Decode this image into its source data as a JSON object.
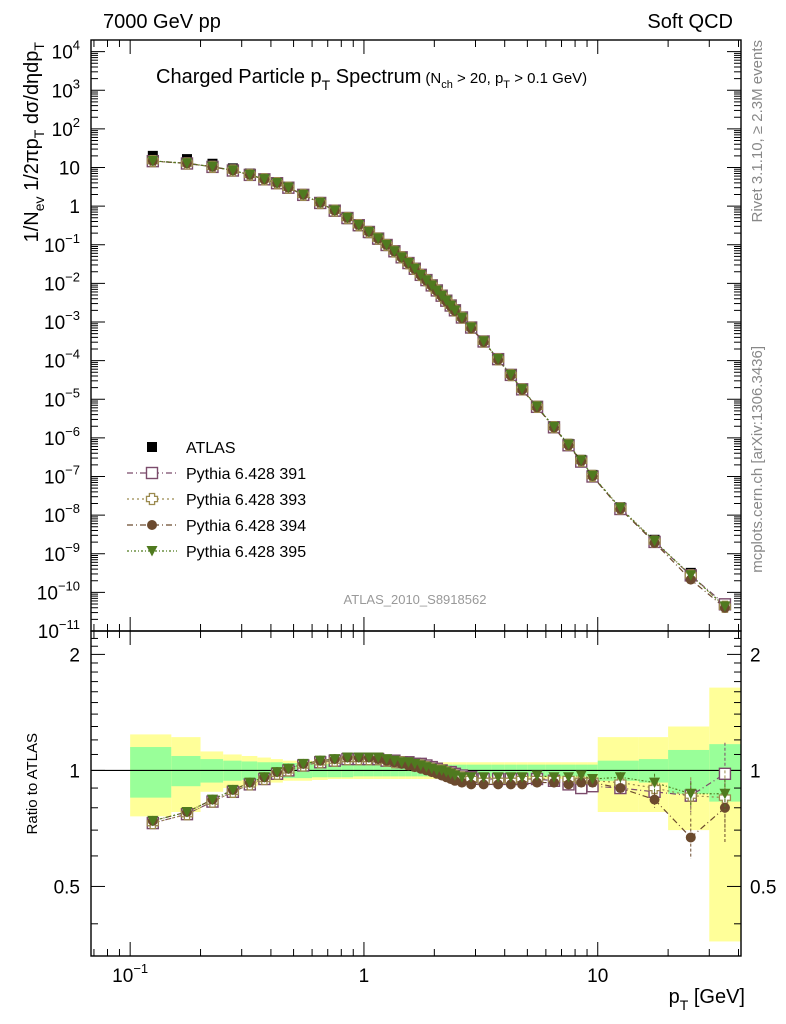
{
  "header": {
    "left": "7000 GeV pp",
    "right": "Soft QCD"
  },
  "side": {
    "rivet": "Rivet 3.1.10, ≥ 2.3M events",
    "mcplots": "mcplots.cern.ch [arXiv:1306.3436]"
  },
  "chart_data": {
    "type": "scatter",
    "title_main": "Charged Particle p",
    "title_main_sub": "T",
    "title_main_end": " Spectrum",
    "title_cut_a": "(N",
    "title_cut_a_sub": "ch",
    "title_cut_b": " > 20, p",
    "title_cut_b_sub": "T",
    "title_cut_c": " > 0.1 GeV)",
    "analysis": "ATLAS_2010_S8918562",
    "ylabel_parts": [
      "1/N",
      "ev",
      " 1/2πp",
      "T",
      " dσ/dηdp",
      "T"
    ],
    "ratio_ylabel": "Ratio to ATLAS",
    "xlabel": "p",
    "xlabel_sub": "T",
    "xlabel_end": "  [GeV]",
    "x_scale": "log",
    "y_scale": "log",
    "xlim": [
      0.068,
      41
    ],
    "ylim": [
      1e-11,
      20000.0
    ],
    "ratio_ylim": [
      0.33,
      2.3
    ],
    "ytick_labels": {
      "base": "10",
      "exps": [
        "4",
        "3",
        "2",
        "",
        "",
        "−1",
        "−2",
        "−3",
        "−4",
        "−5",
        "−6",
        "−7",
        "−8",
        "−9",
        "−10",
        "−11"
      ],
      "plain": [
        "",
        "",
        "",
        "10",
        "1",
        "",
        "",
        "",
        "",
        "",
        "",
        "",
        "",
        "",
        "",
        ""
      ]
    },
    "xtick_labels": [
      "10",
      "1",
      "10"
    ],
    "xtick_label_exp": "−1",
    "ratio_tick_labels": [
      "2",
      "1",
      "0.5"
    ],
    "legend_position": "bottom-left",
    "x": [
      0.125,
      0.175,
      0.225,
      0.275,
      0.325,
      0.375,
      0.425,
      0.475,
      0.55,
      0.65,
      0.75,
      0.85,
      0.95,
      1.05,
      1.15,
      1.25,
      1.35,
      1.45,
      1.55,
      1.65,
      1.75,
      1.85,
      1.95,
      2.05,
      2.15,
      2.25,
      2.35,
      2.45,
      2.625,
      2.875,
      3.25,
      3.75,
      4.25,
      4.75,
      5.5,
      6.5,
      7.5,
      8.5,
      9.5,
      12.5,
      17.5,
      25.0,
      35.0
    ],
    "atlas": [
      20,
      16.5,
      12.5,
      9.5,
      7.0,
      5.2,
      4.0,
      3.0,
      1.9,
      1.15,
      0.72,
      0.46,
      0.3,
      0.2,
      0.135,
      0.093,
      0.064,
      0.045,
      0.032,
      0.023,
      0.016,
      0.0118,
      0.0087,
      0.0065,
      0.0048,
      0.0036,
      0.0027,
      0.00205,
      0.00135,
      0.00075,
      0.00033,
      0.000115,
      4.5e-05,
      1.9e-05,
      6.7e-06,
      2e-06,
      7e-07,
      2.7e-07,
      1.1e-07,
      1.6e-08,
      2.3e-09,
      3.2e-10,
      5e-11
    ],
    "bands": {
      "x_edges": [
        0.1,
        0.15,
        0.2,
        0.25,
        0.3,
        0.35,
        0.4,
        0.45,
        0.5,
        0.6,
        0.7,
        0.8,
        0.9,
        1.0,
        1.1,
        1.2,
        1.3,
        1.4,
        1.5,
        1.6,
        1.7,
        1.8,
        1.9,
        2.0,
        2.1,
        2.2,
        2.3,
        2.4,
        2.5,
        2.75,
        3.0,
        3.5,
        4.0,
        4.5,
        5.0,
        6.0,
        7.0,
        8.0,
        9.0,
        10.0,
        15.0,
        20.0,
        30.0,
        41.0
      ],
      "stat_half": [
        0.15,
        0.09,
        0.07,
        0.06,
        0.055,
        0.05,
        0.05,
        0.045,
        0.045,
        0.04,
        0.04,
        0.04,
        0.035,
        0.035,
        0.035,
        0.035,
        0.035,
        0.035,
        0.035,
        0.035,
        0.035,
        0.035,
        0.035,
        0.035,
        0.035,
        0.035,
        0.035,
        0.035,
        0.035,
        0.035,
        0.035,
        0.035,
        0.035,
        0.035,
        0.035,
        0.035,
        0.035,
        0.035,
        0.035,
        0.06,
        0.07,
        0.13,
        0.17
      ],
      "total_half": [
        0.24,
        0.22,
        0.12,
        0.1,
        0.09,
        0.08,
        0.07,
        0.06,
        0.06,
        0.055,
        0.05,
        0.05,
        0.05,
        0.05,
        0.05,
        0.05,
        0.05,
        0.05,
        0.05,
        0.05,
        0.05,
        0.05,
        0.05,
        0.05,
        0.05,
        0.05,
        0.05,
        0.05,
        0.05,
        0.05,
        0.05,
        0.05,
        0.05,
        0.05,
        0.05,
        0.05,
        0.05,
        0.05,
        0.05,
        0.22,
        0.22,
        0.3,
        0.64
      ]
    },
    "series": [
      {
        "name": "Pythia 6.428 391",
        "marker": "open-square",
        "color": "#7b4b6b",
        "ratio": [
          0.73,
          0.77,
          0.83,
          0.88,
          0.92,
          0.95,
          0.98,
          1.0,
          1.03,
          1.05,
          1.06,
          1.07,
          1.07,
          1.07,
          1.07,
          1.06,
          1.06,
          1.05,
          1.05,
          1.04,
          1.04,
          1.03,
          1.02,
          1.01,
          1.0,
          0.99,
          0.99,
          0.98,
          0.97,
          0.96,
          0.95,
          0.95,
          0.95,
          0.95,
          0.95,
          0.94,
          0.92,
          0.9,
          0.91,
          0.9,
          0.88,
          0.86,
          0.98
        ],
        "err": [
          0,
          0,
          0,
          0,
          0,
          0,
          0,
          0,
          0,
          0,
          0,
          0,
          0,
          0,
          0,
          0,
          0,
          0,
          0,
          0,
          0,
          0,
          0,
          0,
          0,
          0,
          0,
          0,
          0,
          0,
          0,
          0,
          0,
          0,
          0,
          0,
          0,
          0,
          0.02,
          0.03,
          0.05,
          0.08,
          0.2
        ]
      },
      {
        "name": "Pythia 6.428 393",
        "marker": "open-cross",
        "color": "#9b8a4f",
        "ratio": [
          0.73,
          0.77,
          0.83,
          0.88,
          0.92,
          0.95,
          0.98,
          1.0,
          1.03,
          1.05,
          1.06,
          1.07,
          1.07,
          1.07,
          1.07,
          1.06,
          1.05,
          1.05,
          1.04,
          1.03,
          1.03,
          1.02,
          1.01,
          1.0,
          1.0,
          0.99,
          0.98,
          0.97,
          0.96,
          0.95,
          0.94,
          0.94,
          0.94,
          0.95,
          0.95,
          0.95,
          0.95,
          0.94,
          0.94,
          0.93,
          0.9,
          0.86,
          0.85
        ],
        "err": [
          0,
          0,
          0,
          0,
          0,
          0,
          0,
          0,
          0,
          0,
          0,
          0,
          0,
          0,
          0,
          0,
          0,
          0,
          0,
          0,
          0,
          0,
          0,
          0,
          0,
          0,
          0,
          0,
          0,
          0,
          0,
          0,
          0,
          0,
          0,
          0,
          0,
          0,
          0.02,
          0.03,
          0.06,
          0.1,
          0.15
        ]
      },
      {
        "name": "Pythia 6.428 394",
        "marker": "filled-circle",
        "color": "#6b4a2e",
        "ratio": [
          0.74,
          0.78,
          0.84,
          0.89,
          0.93,
          0.96,
          0.99,
          1.01,
          1.04,
          1.06,
          1.07,
          1.08,
          1.08,
          1.08,
          1.07,
          1.06,
          1.05,
          1.04,
          1.03,
          1.02,
          1.01,
          1.0,
          0.99,
          0.98,
          0.97,
          0.96,
          0.95,
          0.94,
          0.93,
          0.92,
          0.92,
          0.92,
          0.92,
          0.92,
          0.93,
          0.93,
          0.92,
          0.93,
          0.93,
          0.9,
          0.84,
          0.67,
          0.8
        ],
        "err": [
          0,
          0,
          0,
          0,
          0,
          0,
          0,
          0,
          0,
          0,
          0,
          0,
          0,
          0,
          0,
          0,
          0,
          0,
          0,
          0,
          0,
          0,
          0,
          0,
          0,
          0,
          0,
          0,
          0,
          0,
          0,
          0,
          0,
          0,
          0,
          0,
          0,
          0,
          0.02,
          0.03,
          0.04,
          0.08,
          0.15
        ]
      },
      {
        "name": "Pythia 6.428 395",
        "marker": "filled-triangle-down",
        "color": "#4f7a1f",
        "ratio": [
          0.74,
          0.78,
          0.84,
          0.89,
          0.93,
          0.96,
          0.99,
          1.01,
          1.04,
          1.06,
          1.07,
          1.08,
          1.08,
          1.08,
          1.08,
          1.07,
          1.06,
          1.05,
          1.05,
          1.04,
          1.03,
          1.02,
          1.01,
          1.0,
          1.0,
          0.99,
          0.98,
          0.97,
          0.96,
          0.96,
          0.96,
          0.96,
          0.96,
          0.96,
          0.97,
          0.96,
          0.96,
          0.97,
          0.95,
          0.96,
          0.93,
          0.87,
          0.87
        ],
        "err": [
          0,
          0,
          0,
          0,
          0,
          0,
          0,
          0,
          0,
          0,
          0,
          0,
          0,
          0,
          0,
          0,
          0,
          0,
          0,
          0,
          0,
          0,
          0,
          0,
          0,
          0,
          0,
          0,
          0,
          0,
          0,
          0,
          0,
          0,
          0,
          0,
          0,
          0,
          0.02,
          0.03,
          0.05,
          0.06,
          0.08
        ]
      }
    ],
    "atlas_label": "ATLAS",
    "colors": {
      "stat_band": "#99ff99",
      "total_band": "#ffff99",
      "atlas": "#000000"
    }
  }
}
